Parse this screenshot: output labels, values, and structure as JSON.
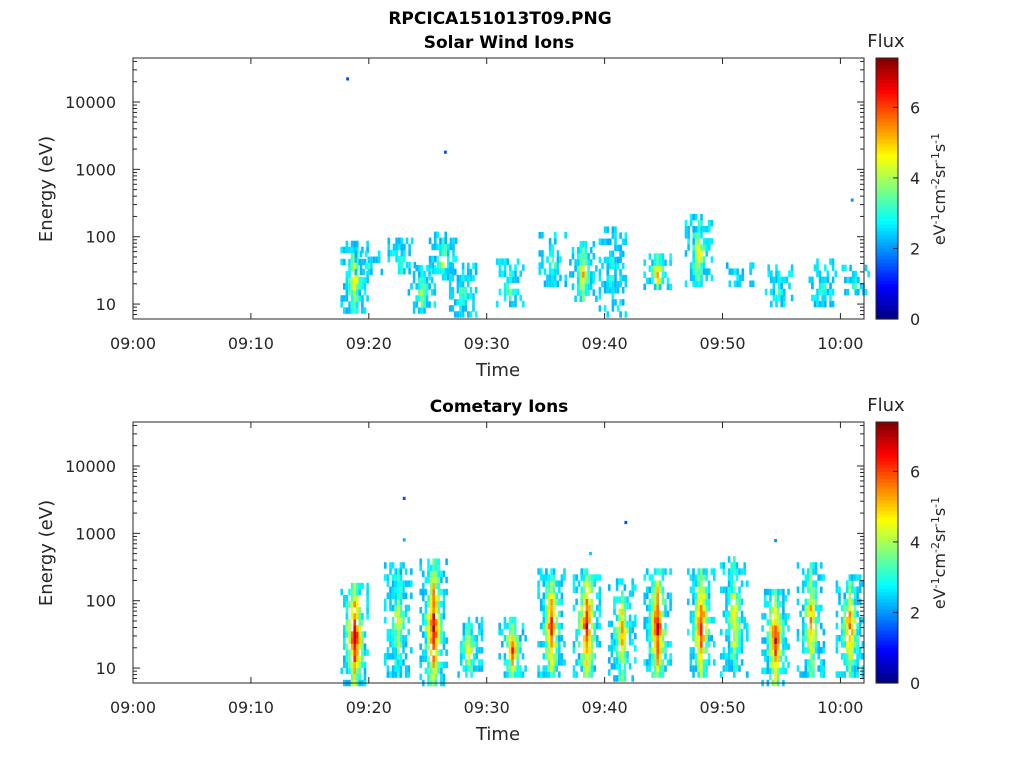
{
  "figure": {
    "title": "RPCICA151013T09.PNG"
  },
  "chart_data": [
    {
      "type": "heatmap",
      "title": "Solar Wind Ions",
      "xlabel": "Time",
      "ylabel": "Energy (eV)",
      "y_scale": "log",
      "xlim": [
        "09:00",
        "10:02"
      ],
      "ylim": [
        6,
        45000
      ],
      "x_tick_labels": [
        "09:00",
        "09:10",
        "09:20",
        "09:30",
        "09:40",
        "09:50",
        "10:00"
      ],
      "y_tick_labels": [
        "10",
        "100",
        "1000",
        "10000"
      ],
      "colorbar": {
        "label": "Flux",
        "units": "eV-1cm-2sr-1s-1",
        "range": [
          0,
          7.4
        ],
        "ticks": [
          "0",
          "2",
          "4",
          "6"
        ],
        "colormap": "jet"
      },
      "points": [
        {
          "t": "09:18.2",
          "e": 22000,
          "v": 1.5
        },
        {
          "t": "09:26.5",
          "e": 1800,
          "v": 1.5
        },
        {
          "t": "10:01.0",
          "e": 350,
          "v": 2.0
        }
      ],
      "bursts": [
        {
          "t": "09:18.8",
          "e_low": 8,
          "e_high": 90,
          "peak": 4.8
        },
        {
          "t": "09:20.0",
          "e_low": 30,
          "e_high": 60,
          "peak": 3.6
        },
        {
          "t": "09:22.8",
          "e_low": 25,
          "e_high": 90,
          "peak": 3.2
        },
        {
          "t": "09:24.5",
          "e_low": 8,
          "e_high": 40,
          "peak": 4.2
        },
        {
          "t": "09:26.3",
          "e_low": 25,
          "e_high": 110,
          "peak": 4.4
        },
        {
          "t": "09:28.0",
          "e_low": 7,
          "e_high": 40,
          "peak": 3.6
        },
        {
          "t": "09:32.0",
          "e_low": 10,
          "e_high": 45,
          "peak": 3.8
        },
        {
          "t": "09:35.6",
          "e_low": 20,
          "e_high": 110,
          "peak": 3.6
        },
        {
          "t": "09:38.2",
          "e_low": 12,
          "e_high": 90,
          "peak": 5.0
        },
        {
          "t": "09:40.7",
          "e_low": 7,
          "e_high": 140,
          "peak": 3.2
        },
        {
          "t": "09:44.5",
          "e_low": 18,
          "e_high": 60,
          "peak": 5.2
        },
        {
          "t": "09:48.0",
          "e_low": 20,
          "e_high": 220,
          "peak": 4.8
        },
        {
          "t": "09:51.5",
          "e_low": 20,
          "e_high": 45,
          "peak": 3.0
        },
        {
          "t": "09:54.8",
          "e_low": 10,
          "e_high": 40,
          "peak": 3.2
        },
        {
          "t": "09:58.5",
          "e_low": 10,
          "e_high": 45,
          "peak": 3.4
        },
        {
          "t": "10:01.3",
          "e_low": 15,
          "e_high": 35,
          "peak": 3.2
        }
      ]
    },
    {
      "type": "heatmap",
      "title": "Cometary Ions",
      "xlabel": "Time",
      "ylabel": "Energy (eV)",
      "y_scale": "log",
      "xlim": [
        "09:00",
        "10:02"
      ],
      "ylim": [
        6,
        45000
      ],
      "x_tick_labels": [
        "09:00",
        "09:10",
        "09:20",
        "09:30",
        "09:40",
        "09:50",
        "10:00"
      ],
      "y_tick_labels": [
        "10",
        "100",
        "1000",
        "10000"
      ],
      "colorbar": {
        "label": "Flux",
        "units": "eV-1cm-2sr-1s-1",
        "range": [
          0,
          7.4
        ],
        "ticks": [
          "0",
          "2",
          "4",
          "6"
        ],
        "colormap": "jet"
      },
      "points": [
        {
          "t": "09:23.0",
          "e": 3300,
          "v": 1.5
        },
        {
          "t": "09:41.8",
          "e": 1450,
          "v": 1.5
        },
        {
          "t": "09:54.5",
          "e": 780,
          "v": 2.0
        },
        {
          "t": "09:23.0",
          "e": 800,
          "v": 2.2
        },
        {
          "t": "09:38.8",
          "e": 500,
          "v": 2.4
        }
      ],
      "bursts": [
        {
          "t": "09:18.8",
          "e_low": 6,
          "e_high": 200,
          "peak": 7.0
        },
        {
          "t": "09:22.5",
          "e_low": 8,
          "e_high": 400,
          "peak": 4.5
        },
        {
          "t": "09:25.5",
          "e_low": 6,
          "e_high": 400,
          "peak": 6.8
        },
        {
          "t": "09:28.5",
          "e_low": 8,
          "e_high": 60,
          "peak": 5.0
        },
        {
          "t": "09:32.2",
          "e_low": 8,
          "e_high": 60,
          "peak": 6.0
        },
        {
          "t": "09:35.5",
          "e_low": 8,
          "e_high": 300,
          "peak": 6.2
        },
        {
          "t": "09:38.5",
          "e_low": 8,
          "e_high": 280,
          "peak": 6.8
        },
        {
          "t": "09:41.5",
          "e_low": 7,
          "e_high": 200,
          "peak": 5.5
        },
        {
          "t": "09:44.5",
          "e_low": 8,
          "e_high": 300,
          "peak": 6.8
        },
        {
          "t": "09:48.2",
          "e_low": 8,
          "e_high": 300,
          "peak": 6.5
        },
        {
          "t": "09:51.0",
          "e_low": 8,
          "e_high": 500,
          "peak": 5.0
        },
        {
          "t": "09:54.5",
          "e_low": 6,
          "e_high": 150,
          "peak": 6.5
        },
        {
          "t": "09:57.5",
          "e_low": 8,
          "e_high": 400,
          "peak": 5.5
        },
        {
          "t": "10:00.8",
          "e_low": 8,
          "e_high": 250,
          "peak": 5.8
        }
      ]
    }
  ]
}
